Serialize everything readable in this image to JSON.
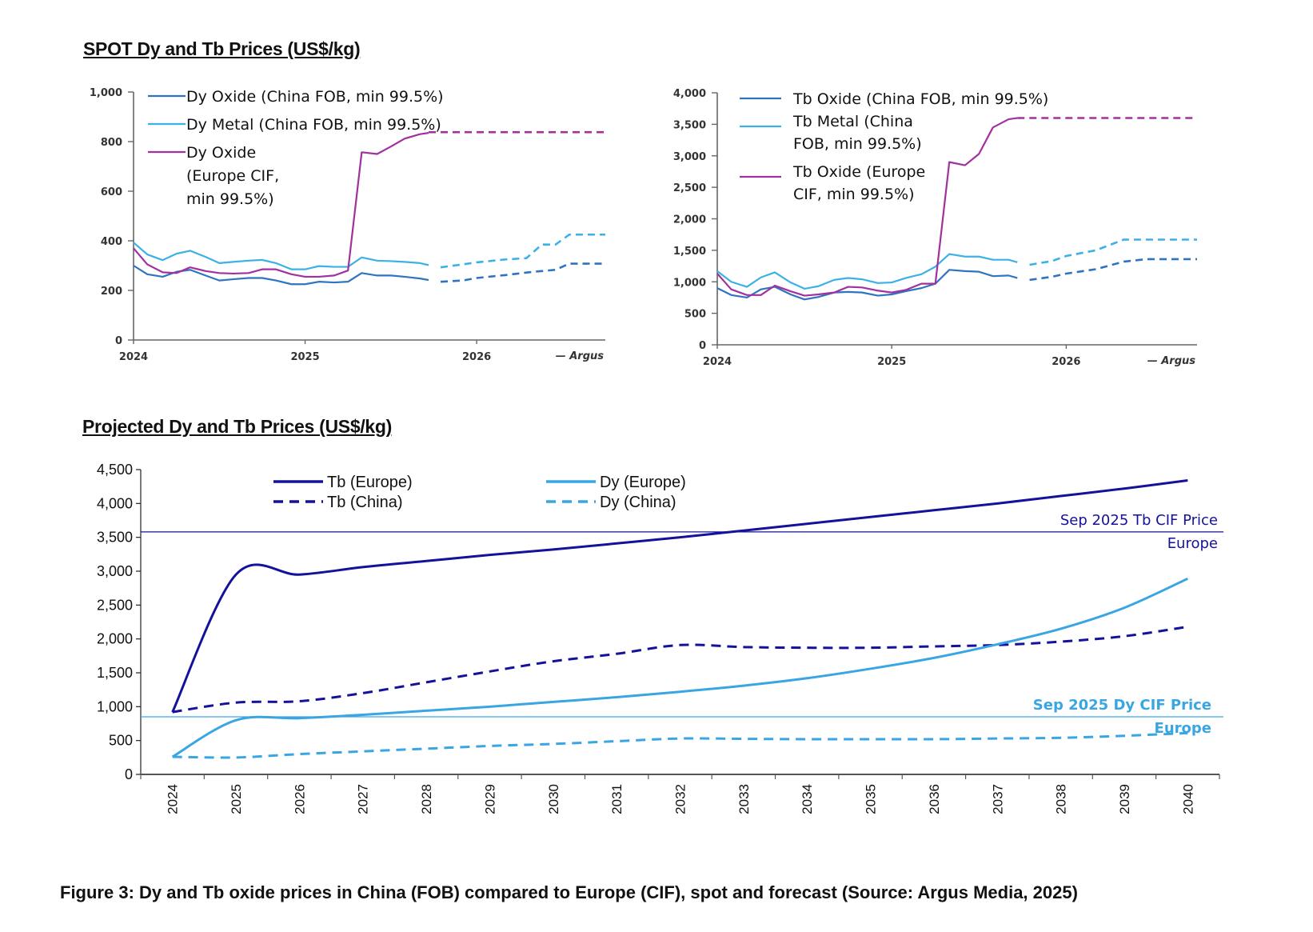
{
  "spot_title": "SPOT Dy and Tb Prices (US$/kg)",
  "projected_title": "Projected Dy and Tb Prices (US$/kg)",
  "caption": "Figure 3: Dy and Tb oxide prices in China (FOB) compared to Europe (CIF), spot and forecast (Source: Argus Media, 2025)",
  "colors": {
    "dy_oxide_china": "#2e74c0",
    "dy_metal_china": "#3bb1e6",
    "europe_cif": "#a0319f",
    "tb_europe": "#14129a",
    "dy_europe": "#39a6e3"
  },
  "chart_data": [
    {
      "id": "spot_dy",
      "type": "line",
      "title": "",
      "source_label": "— Argus",
      "xlabel": "",
      "ylabel": "",
      "xlim": [
        2024.0,
        2026.75
      ],
      "ylim": [
        0,
        1000
      ],
      "yticks": [
        0,
        200,
        400,
        600,
        800,
        1000
      ],
      "ytick_labels": [
        "0",
        "200",
        "400",
        "600",
        "800",
        "1,000"
      ],
      "xticks": [
        2024,
        2025,
        2026
      ],
      "xtick_labels": [
        "2024",
        "2025",
        "2026"
      ],
      "grid": false,
      "legend_position": "top-left",
      "series": [
        {
          "name": "Dy Oxide (China FOB, min 99.5%)",
          "legend_lines": [
            "Dy Oxide (China FOB, min 99.5%)"
          ],
          "color_key": "dy_oxide_china",
          "actual": [
            [
              2024.0,
              300
            ],
            [
              2024.08,
              265
            ],
            [
              2024.17,
              255
            ],
            [
              2024.25,
              275
            ],
            [
              2024.33,
              283
            ],
            [
              2024.42,
              260
            ],
            [
              2024.5,
              240
            ],
            [
              2024.58,
              245
            ],
            [
              2024.67,
              250
            ],
            [
              2024.75,
              250
            ],
            [
              2024.83,
              240
            ],
            [
              2024.92,
              225
            ],
            [
              2025.0,
              225
            ],
            [
              2025.08,
              235
            ],
            [
              2025.17,
              232
            ],
            [
              2025.25,
              235
            ],
            [
              2025.33,
              270
            ],
            [
              2025.42,
              260
            ],
            [
              2025.5,
              260
            ],
            [
              2025.58,
              255
            ],
            [
              2025.67,
              248
            ],
            [
              2025.72,
              242
            ]
          ],
          "forecast": [
            [
              2025.79,
              235
            ],
            [
              2025.92,
              240
            ],
            [
              2026.0,
              250
            ],
            [
              2026.17,
              262
            ],
            [
              2026.33,
              275
            ],
            [
              2026.46,
              283
            ],
            [
              2026.54,
              308
            ],
            [
              2026.75,
              308
            ]
          ]
        },
        {
          "name": "Dy Metal (China FOB, min 99.5%)",
          "legend_lines": [
            "Dy Metal (China FOB, min 99.5%)"
          ],
          "color_key": "dy_metal_china",
          "actual": [
            [
              2024.0,
              393
            ],
            [
              2024.08,
              345
            ],
            [
              2024.17,
              322
            ],
            [
              2024.25,
              348
            ],
            [
              2024.33,
              360
            ],
            [
              2024.42,
              335
            ],
            [
              2024.5,
              310
            ],
            [
              2024.58,
              315
            ],
            [
              2024.67,
              320
            ],
            [
              2024.75,
              323
            ],
            [
              2024.83,
              310
            ],
            [
              2024.92,
              285
            ],
            [
              2025.0,
              285
            ],
            [
              2025.08,
              298
            ],
            [
              2025.17,
              295
            ],
            [
              2025.25,
              295
            ],
            [
              2025.33,
              333
            ],
            [
              2025.42,
              320
            ],
            [
              2025.5,
              318
            ],
            [
              2025.58,
              315
            ],
            [
              2025.67,
              310
            ],
            [
              2025.72,
              302
            ]
          ],
          "forecast": [
            [
              2025.79,
              293
            ],
            [
              2025.92,
              305
            ],
            [
              2026.0,
              313
            ],
            [
              2026.17,
              325
            ],
            [
              2026.29,
              330
            ],
            [
              2026.38,
              385
            ],
            [
              2026.46,
              385
            ],
            [
              2026.54,
              425
            ],
            [
              2026.75,
              425
            ]
          ]
        },
        {
          "name": "Dy Oxide (Europe CIF, min 99.5%)",
          "legend_lines": [
            "Dy Oxide",
            "(Europe CIF,",
            "min 99.5%)"
          ],
          "color_key": "europe_cif",
          "actual": [
            [
              2024.0,
              370
            ],
            [
              2024.08,
              305
            ],
            [
              2024.17,
              273
            ],
            [
              2024.25,
              270
            ],
            [
              2024.33,
              293
            ],
            [
              2024.42,
              278
            ],
            [
              2024.5,
              270
            ],
            [
              2024.58,
              268
            ],
            [
              2024.67,
              270
            ],
            [
              2024.75,
              285
            ],
            [
              2024.83,
              285
            ],
            [
              2024.92,
              265
            ],
            [
              2025.0,
              255
            ],
            [
              2025.08,
              255
            ],
            [
              2025.17,
              260
            ],
            [
              2025.25,
              280
            ],
            [
              2025.33,
              757
            ],
            [
              2025.42,
              750
            ],
            [
              2025.5,
              780
            ],
            [
              2025.58,
              812
            ],
            [
              2025.67,
              830
            ],
            [
              2025.72,
              835
            ]
          ],
          "forecast": [
            [
              2025.72,
              838
            ],
            [
              2026.75,
              838
            ]
          ]
        }
      ]
    },
    {
      "id": "spot_tb",
      "type": "line",
      "title": "",
      "source_label": "— Argus",
      "xlabel": "",
      "ylabel": "",
      "xlim": [
        2024.0,
        2026.75
      ],
      "ylim": [
        0,
        4000
      ],
      "yticks": [
        0,
        500,
        1000,
        1500,
        2000,
        2500,
        3000,
        3500,
        4000
      ],
      "ytick_labels": [
        "0",
        "500",
        "1,000",
        "1,500",
        "2,000",
        "2,500",
        "3,000",
        "3,500",
        "4,000"
      ],
      "xticks": [
        2024,
        2025,
        2026
      ],
      "xtick_labels": [
        "2024",
        "2025",
        "2026"
      ],
      "grid": false,
      "legend_position": "top-left",
      "series": [
        {
          "name": "Tb Oxide (China FOB, min 99.5%)",
          "legend_lines": [
            "Tb Oxide (China FOB, min 99.5%)"
          ],
          "color_key": "dy_oxide_china",
          "actual": [
            [
              2024.0,
              900
            ],
            [
              2024.08,
              790
            ],
            [
              2024.17,
              750
            ],
            [
              2024.25,
              880
            ],
            [
              2024.33,
              920
            ],
            [
              2024.42,
              800
            ],
            [
              2024.5,
              720
            ],
            [
              2024.58,
              760
            ],
            [
              2024.67,
              830
            ],
            [
              2024.75,
              840
            ],
            [
              2024.83,
              830
            ],
            [
              2024.92,
              780
            ],
            [
              2025.0,
              800
            ],
            [
              2025.08,
              850
            ],
            [
              2025.17,
              900
            ],
            [
              2025.25,
              970
            ],
            [
              2025.33,
              1190
            ],
            [
              2025.42,
              1170
            ],
            [
              2025.5,
              1160
            ],
            [
              2025.58,
              1090
            ],
            [
              2025.67,
              1100
            ],
            [
              2025.72,
              1060
            ]
          ],
          "forecast": [
            [
              2025.79,
              1030
            ],
            [
              2025.92,
              1080
            ],
            [
              2026.0,
              1130
            ],
            [
              2026.17,
              1200
            ],
            [
              2026.33,
              1320
            ],
            [
              2026.46,
              1360
            ],
            [
              2026.75,
              1360
            ]
          ]
        },
        {
          "name": "Tb Metal (China FOB, min 99.5%)",
          "legend_lines": [
            "Tb Metal (China",
            "FOB, min 99.5%)"
          ],
          "color_key": "dy_metal_china",
          "actual": [
            [
              2024.0,
              1170
            ],
            [
              2024.08,
              1000
            ],
            [
              2024.17,
              920
            ],
            [
              2024.25,
              1070
            ],
            [
              2024.33,
              1150
            ],
            [
              2024.42,
              990
            ],
            [
              2024.5,
              890
            ],
            [
              2024.58,
              930
            ],
            [
              2024.67,
              1030
            ],
            [
              2024.75,
              1060
            ],
            [
              2024.83,
              1040
            ],
            [
              2024.92,
              980
            ],
            [
              2025.0,
              990
            ],
            [
              2025.08,
              1060
            ],
            [
              2025.17,
              1120
            ],
            [
              2025.25,
              1240
            ],
            [
              2025.33,
              1440
            ],
            [
              2025.42,
              1400
            ],
            [
              2025.5,
              1400
            ],
            [
              2025.58,
              1350
            ],
            [
              2025.67,
              1350
            ],
            [
              2025.72,
              1310
            ]
          ],
          "forecast": [
            [
              2025.79,
              1270
            ],
            [
              2025.92,
              1330
            ],
            [
              2026.0,
              1410
            ],
            [
              2026.17,
              1500
            ],
            [
              2026.33,
              1670
            ],
            [
              2026.46,
              1670
            ],
            [
              2026.75,
              1670
            ]
          ]
        },
        {
          "name": "Tb Oxide (Europe CIF, min 99.5%)",
          "legend_lines": [
            "Tb Oxide (Europe",
            "CIF, min 99.5%)"
          ],
          "color_key": "europe_cif",
          "actual": [
            [
              2024.0,
              1130
            ],
            [
              2024.08,
              880
            ],
            [
              2024.17,
              790
            ],
            [
              2024.25,
              790
            ],
            [
              2024.33,
              940
            ],
            [
              2024.42,
              850
            ],
            [
              2024.5,
              780
            ],
            [
              2024.58,
              800
            ],
            [
              2024.67,
              830
            ],
            [
              2024.75,
              920
            ],
            [
              2024.83,
              910
            ],
            [
              2024.92,
              860
            ],
            [
              2025.0,
              830
            ],
            [
              2025.08,
              870
            ],
            [
              2025.17,
              970
            ],
            [
              2025.25,
              970
            ],
            [
              2025.33,
              2900
            ],
            [
              2025.42,
              2850
            ],
            [
              2025.5,
              3030
            ],
            [
              2025.58,
              3450
            ],
            [
              2025.67,
              3580
            ],
            [
              2025.72,
              3600
            ]
          ],
          "forecast": [
            [
              2025.72,
              3600
            ],
            [
              2026.75,
              3600
            ]
          ]
        }
      ]
    },
    {
      "id": "projected",
      "type": "line",
      "title": "",
      "xlabel": "",
      "ylabel": "",
      "ylim": [
        0,
        4500
      ],
      "yticks": [
        0,
        500,
        1000,
        1500,
        2000,
        2500,
        3000,
        3500,
        4000,
        4500
      ],
      "ytick_labels": [
        "0",
        "500",
        "1,000",
        "1,500",
        "2,000",
        "2,500",
        "3,000",
        "3,500",
        "4,000",
        "4,500"
      ],
      "categories": [
        "2024",
        "2025",
        "2026",
        "2027",
        "2028",
        "2029",
        "2030",
        "2031",
        "2032",
        "2033",
        "2034",
        "2035",
        "2036",
        "2037",
        "2038",
        "2039",
        "2040"
      ],
      "grid": false,
      "legend_position": "top",
      "series": [
        {
          "name": "Tb (Europe)",
          "style": "solid",
          "color_key": "tb_europe",
          "values": [
            920,
            2950,
            2950,
            3060,
            3150,
            3240,
            3320,
            3410,
            3500,
            3600,
            3700,
            3800,
            3900,
            4000,
            4110,
            4220,
            4340
          ]
        },
        {
          "name": "Tb (China)",
          "style": "dashed",
          "color_key": "tb_europe",
          "values": [
            920,
            1060,
            1080,
            1200,
            1360,
            1520,
            1670,
            1780,
            1910,
            1880,
            1870,
            1870,
            1890,
            1910,
            1960,
            2040,
            2180
          ]
        },
        {
          "name": "Dy (Europe)",
          "style": "solid",
          "color_key": "dy_europe",
          "values": [
            260,
            800,
            830,
            880,
            940,
            1000,
            1070,
            1140,
            1220,
            1310,
            1420,
            1560,
            1720,
            1920,
            2150,
            2460,
            2890
          ]
        },
        {
          "name": "Dy (China)",
          "style": "dashed",
          "color_key": "dy_europe",
          "values": [
            260,
            250,
            300,
            340,
            380,
            420,
            450,
            490,
            530,
            525,
            520,
            520,
            520,
            530,
            540,
            570,
            610
          ]
        }
      ],
      "reference_lines": [
        {
          "value": 3580,
          "label_lines": [
            "Sep 2025 Tb CIF Price",
            "Europe"
          ],
          "color_key": "tb_europe",
          "bold": false
        },
        {
          "value": 850,
          "label_lines": [
            "Sep 2025 Dy CIF Price",
            "Europe"
          ],
          "color_key": "dy_europe",
          "bold": true
        }
      ]
    }
  ]
}
